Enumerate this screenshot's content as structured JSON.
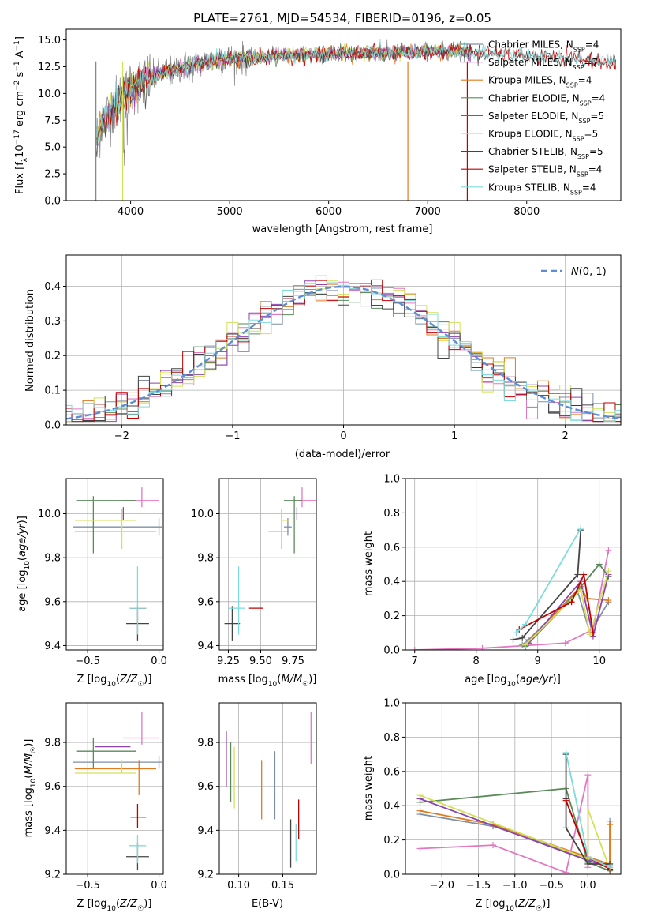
{
  "title": "PLATE=2761, MJD=54534, FIBERID=0196, z=0.05",
  "colors": {
    "chabrier_miles": "#7f8fa6",
    "salpeter_miles": "#e377c2",
    "kroupa_miles": "#e07b20",
    "chabrier_elodie": "#5a8a5a",
    "salpeter_elodie": "#8e44ad",
    "kroupa_elodie": "#d4e157",
    "chabrier_stelib": "#444444",
    "salpeter_stelib": "#c00000",
    "kroupa_stelib": "#7fdbdb",
    "grid": "#b0b0b0",
    "normal_curve": "#5b8ed6",
    "data": "#808080"
  },
  "chart_data": [
    {
      "id": "spectrum",
      "type": "line",
      "title": "PLATE=2761, MJD=54534, FIBERID=0196, z=0.05",
      "xlabel": "wavelength [Angstrom, rest frame]",
      "ylabel": "Flux [f_λ 10^-17 erg cm^-2 s^-1 A^-1]",
      "xlim": [
        3350,
        8950
      ],
      "ylim": [
        0,
        16
      ],
      "xticks": [
        4000,
        5000,
        6000,
        7000,
        8000
      ],
      "yticks": [
        0.0,
        2.5,
        5.0,
        7.5,
        10.0,
        12.5,
        15.0
      ],
      "legend_position": "top-right",
      "legend": [
        "Chabrier MILES, N_SSP=4",
        "Salpeter MILES, N_SSP=7",
        "Kroupa MILES, N_SSP=4",
        "Chabrier ELODIE, N_SSP=4",
        "Salpeter ELODIE, N_SSP=5",
        "Kroupa ELODIE, N_SSP=5",
        "Chabrier STELIB, N_SSP=5",
        "Salpeter STELIB, N_SSP=4",
        "Kroupa STELIB, N_SSP=4"
      ],
      "continuum": [
        [
          3650,
          5.5
        ],
        [
          3700,
          7.0
        ],
        [
          3800,
          8.5
        ],
        [
          3900,
          9.5
        ],
        [
          4000,
          10.5
        ],
        [
          4100,
          11.0
        ],
        [
          4300,
          11.8
        ],
        [
          4500,
          12.4
        ],
        [
          4800,
          13.0
        ],
        [
          5000,
          13.2
        ],
        [
          5500,
          13.5
        ],
        [
          6000,
          13.7
        ],
        [
          6500,
          13.8
        ],
        [
          7000,
          13.9
        ],
        [
          7400,
          14.0
        ],
        [
          7500,
          13.8
        ],
        [
          8000,
          13.5
        ],
        [
          8500,
          13.2
        ],
        [
          8900,
          12.8
        ]
      ]
    },
    {
      "id": "residuals",
      "type": "line",
      "xlabel": "(data-model)/error",
      "ylabel": "Normed distribution",
      "xlim": [
        -2.5,
        2.5
      ],
      "ylim": [
        0,
        0.49
      ],
      "xticks": [
        -2,
        -1,
        0,
        1,
        2
      ],
      "yticks": [
        0.0,
        0.1,
        0.2,
        0.3,
        0.4
      ],
      "grid": true,
      "legend_position": "top-right",
      "legend": [
        "N(0,1)"
      ],
      "bin_width": 0.1
    },
    {
      "id": "age_vs_Z",
      "type": "scatter",
      "xlabel": "Z [log10(Z/Z☉)]",
      "ylabel": "age  [log10(age/yr)]",
      "xlim": [
        -0.65,
        0.03
      ],
      "ylim": [
        9.38,
        10.16
      ],
      "xticks": [
        -0.5,
        0.0
      ],
      "yticks": [
        9.4,
        9.6,
        9.8,
        10.0
      ],
      "grid": true
    },
    {
      "id": "age_vs_mass",
      "type": "scatter",
      "xlabel": "mass [log10(M/M☉)]",
      "ylabel": "",
      "xlim": [
        9.18,
        9.93
      ],
      "ylim": [
        9.38,
        10.16
      ],
      "xticks": [
        9.25,
        9.5,
        9.75
      ],
      "yticks": [
        9.4,
        9.6,
        9.8,
        10.0
      ],
      "grid": true
    },
    {
      "id": "weight_vs_age",
      "type": "line",
      "xlabel": "age  [log10(age/yr)]",
      "ylabel": "mass weight",
      "xlim": [
        6.85,
        10.35
      ],
      "ylim": [
        0,
        1.0
      ],
      "xticks": [
        7,
        8,
        9,
        10
      ],
      "yticks": [
        0.0,
        0.2,
        0.4,
        0.6,
        0.8,
        1.0
      ],
      "grid": true
    },
    {
      "id": "mass_vs_Z",
      "type": "scatter",
      "xlabel": "Z [log10(Z/Z☉)]",
      "ylabel": "mass [log10(M/M☉)]",
      "xlim": [
        -0.65,
        0.03
      ],
      "ylim": [
        9.2,
        9.98
      ],
      "xticks": [
        -0.5,
        0.0
      ],
      "yticks": [
        9.2,
        9.4,
        9.6,
        9.8
      ],
      "grid": true
    },
    {
      "id": "mass_vs_ebv",
      "type": "scatter",
      "xlabel": "E(B-V)",
      "ylabel": "",
      "xlim": [
        0.078,
        0.188
      ],
      "ylim": [
        9.2,
        9.98
      ],
      "xticks": [
        0.1,
        0.15
      ],
      "yticks": [
        9.2,
        9.4,
        9.6,
        9.8
      ],
      "grid": true
    },
    {
      "id": "weight_vs_Z",
      "type": "line",
      "xlabel": "Z [log10(Z/Z☉)]",
      "ylabel": "mass weight",
      "xlim": [
        -2.5,
        0.45
      ],
      "ylim": [
        0,
        1.0
      ],
      "xticks": [
        -2.0,
        -1.5,
        -1.0,
        -0.5,
        0.0
      ],
      "yticks": [
        0.0,
        0.2,
        0.4,
        0.6,
        0.8,
        1.0
      ],
      "grid": true
    }
  ],
  "fits": [
    {
      "key": "chabrier_miles",
      "Z": 0.0,
      "Zerr": [
        0.6,
        0.02
      ],
      "age": 9.94,
      "ageerr": [
        0.04,
        0.04
      ],
      "mass": 9.71,
      "masserr": [
        0.03,
        0.03
      ],
      "ebv": 0.141,
      "ebverr": [
        9.45,
        9.76
      ]
    },
    {
      "key": "salpeter_miles",
      "Z": -0.12,
      "Zerr": [
        0.13,
        0.12
      ],
      "age": 10.06,
      "ageerr": [
        0.03,
        0.06
      ],
      "mass": 9.82,
      "masserr": [
        0.03,
        0.12
      ],
      "ebv": 0.182,
      "ebverr": [
        9.7,
        9.94
      ]
    },
    {
      "key": "kroupa_miles",
      "Z": -0.14,
      "Zerr": [
        0.45,
        0.12
      ],
      "age": 9.92,
      "ageerr": [
        0.0,
        0.0
      ],
      "mass": 9.68,
      "masserr": [
        0.12,
        0.04
      ],
      "ebv": 0.126,
      "ebverr": [
        9.45,
        9.72
      ]
    },
    {
      "key": "chabrier_elodie",
      "Z": -0.46,
      "Zerr": [
        0.12,
        0.3
      ],
      "age": 10.06,
      "ageerr": [
        0.24,
        0.02
      ],
      "mass": 9.76,
      "masserr": [
        0.08,
        0.06
      ],
      "ebv": 0.091,
      "ebverr": [
        9.53,
        9.8
      ]
    },
    {
      "key": "salpeter_elodie",
      "Z": -0.25,
      "Zerr": [
        0.2,
        0.05
      ],
      "age": 9.97,
      "ageerr": [
        0.0,
        0.06
      ],
      "mass": 9.78,
      "masserr": [
        0.0,
        0.0
      ],
      "ebv": 0.086,
      "ebverr": [
        9.6,
        9.85
      ]
    },
    {
      "key": "kroupa_elodie",
      "Z": -0.26,
      "Zerr": [
        0.33,
        0.1
      ],
      "age": 9.97,
      "ageerr": [
        0.13,
        0.05
      ],
      "mass": 9.66,
      "masserr": [
        0.0,
        0.06
      ],
      "ebv": 0.095,
      "ebverr": [
        9.5,
        9.78
      ]
    },
    {
      "key": "chabrier_stelib",
      "Z": -0.15,
      "Zerr": [
        0.08,
        0.08
      ],
      "age": 9.5,
      "ageerr": [
        0.08,
        0.08
      ],
      "mass": 9.28,
      "masserr": [
        0.06,
        0.06
      ],
      "ebv": 0.159,
      "ebverr": [
        9.23,
        9.45
      ]
    },
    {
      "key": "salpeter_stelib",
      "Z": -0.15,
      "Zerr": [
        0.05,
        0.06
      ],
      "age": 9.57,
      "ageerr": [
        0.0,
        0.0
      ],
      "mass": 9.46,
      "masserr": [
        0.05,
        0.06
      ],
      "ebv": 0.168,
      "ebverr": [
        9.36,
        9.54
      ]
    },
    {
      "key": "kroupa_stelib",
      "Z": -0.15,
      "Zerr": [
        0.06,
        0.06
      ],
      "age": 9.57,
      "ageerr": [
        0.12,
        0.19
      ],
      "mass": 9.33,
      "masserr": [
        0.08,
        0.05
      ],
      "ebv": 0.165,
      "ebverr": [
        9.26,
        9.43
      ]
    }
  ],
  "weights_age": [
    {
      "key": "chabrier_miles",
      "pts": [
        [
          8.75,
          0.03
        ],
        [
          8.85,
          0.06
        ],
        [
          9.65,
          0.34
        ],
        [
          9.85,
          0.1
        ],
        [
          10.15,
          0.28
        ]
      ]
    },
    {
      "key": "salpeter_miles",
      "pts": [
        [
          7.0,
          0.0
        ],
        [
          8.1,
          0.01
        ],
        [
          9.45,
          0.04
        ],
        [
          9.9,
          0.12
        ],
        [
          10.15,
          0.58
        ]
      ]
    },
    {
      "key": "kroupa_miles",
      "pts": [
        [
          8.8,
          0.03
        ],
        [
          9.7,
          0.37
        ],
        [
          9.8,
          0.3
        ],
        [
          10.15,
          0.29
        ]
      ]
    },
    {
      "key": "chabrier_elodie",
      "pts": [
        [
          8.8,
          0.02
        ],
        [
          9.5,
          0.28
        ],
        [
          10.0,
          0.5
        ],
        [
          10.15,
          0.43
        ]
      ]
    },
    {
      "key": "salpeter_elodie",
      "pts": [
        [
          8.85,
          0.04
        ],
        [
          9.7,
          0.4
        ],
        [
          9.9,
          0.08
        ],
        [
          10.15,
          0.44
        ]
      ]
    },
    {
      "key": "kroupa_elodie",
      "pts": [
        [
          8.8,
          0.03
        ],
        [
          9.7,
          0.35
        ],
        [
          9.85,
          0.09
        ],
        [
          10.15,
          0.46
        ]
      ]
    },
    {
      "key": "chabrier_stelib",
      "pts": [
        [
          8.6,
          0.06
        ],
        [
          8.75,
          0.07
        ],
        [
          9.65,
          0.44
        ],
        [
          9.7,
          0.7
        ]
      ]
    },
    {
      "key": "salpeter_stelib",
      "pts": [
        [
          8.7,
          0.12
        ],
        [
          9.55,
          0.28
        ],
        [
          9.75,
          0.44
        ],
        [
          9.9,
          0.1
        ]
      ]
    },
    {
      "key": "kroupa_stelib",
      "pts": [
        [
          8.65,
          0.1
        ],
        [
          8.8,
          0.15
        ],
        [
          9.7,
          0.71
        ]
      ]
    }
  ],
  "weights_Z": [
    {
      "key": "chabrier_miles",
      "pts": [
        [
          -2.3,
          0.35
        ],
        [
          -1.3,
          0.28
        ],
        [
          0.0,
          0.09
        ],
        [
          0.3,
          0.05
        ],
        [
          0.3,
          0.31
        ]
      ]
    },
    {
      "key": "salpeter_miles",
      "pts": [
        [
          -2.3,
          0.15
        ],
        [
          -1.3,
          0.17
        ],
        [
          -0.3,
          0.01
        ],
        [
          0.0,
          0.58
        ],
        [
          0.0,
          0.04
        ]
      ]
    },
    {
      "key": "kroupa_miles",
      "pts": [
        [
          -2.3,
          0.37
        ],
        [
          -1.3,
          0.29
        ],
        [
          0.0,
          0.1
        ],
        [
          0.3,
          0.06
        ],
        [
          0.3,
          0.29
        ]
      ]
    },
    {
      "key": "chabrier_elodie",
      "pts": [
        [
          -2.3,
          0.42
        ],
        [
          -0.3,
          0.5
        ],
        [
          0.0,
          0.07
        ],
        [
          0.3,
          0.02
        ]
      ]
    },
    {
      "key": "salpeter_elodie",
      "pts": [
        [
          -2.3,
          0.44
        ],
        [
          0.0,
          0.08
        ],
        [
          0.3,
          0.04
        ]
      ]
    },
    {
      "key": "kroupa_elodie",
      "pts": [
        [
          -2.3,
          0.46
        ],
        [
          0.0,
          0.09
        ],
        [
          0.0,
          0.38
        ],
        [
          0.3,
          0.03
        ]
      ]
    },
    {
      "key": "chabrier_stelib",
      "pts": [
        [
          -0.3,
          0.7
        ],
        [
          -0.3,
          0.44
        ],
        [
          -0.3,
          0.27
        ],
        [
          0.0,
          0.06
        ],
        [
          0.3,
          0.06
        ]
      ]
    },
    {
      "key": "salpeter_stelib",
      "pts": [
        [
          -0.3,
          0.43
        ],
        [
          0.0,
          0.1
        ],
        [
          0.3,
          0.03
        ]
      ]
    },
    {
      "key": "kroupa_stelib",
      "pts": [
        [
          -0.3,
          0.71
        ],
        [
          0.0,
          0.1
        ],
        [
          0.3,
          0.04
        ]
      ]
    }
  ]
}
